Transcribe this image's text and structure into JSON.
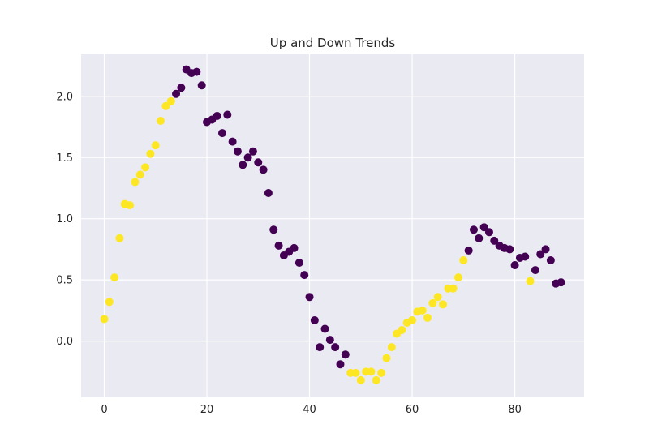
{
  "chart_data": {
    "type": "scatter",
    "title": "Up and Down Trends",
    "xlabel": "",
    "ylabel": "",
    "xlim": [
      -4.5,
      93.5
    ],
    "ylim": [
      -0.46,
      2.35
    ],
    "xticks": [
      0,
      20,
      40,
      60,
      80
    ],
    "yticks": [
      0.0,
      0.5,
      1.0,
      1.5,
      2.0
    ],
    "ytick_labels": [
      "0.0",
      "0.5",
      "1.0",
      "1.5",
      "2.0"
    ],
    "grid": true,
    "colors": {
      "up": "#fde725",
      "down": "#440154",
      "background": "#eaeaf2",
      "grid": "#ffffff"
    },
    "x": [
      0,
      1,
      2,
      3,
      4,
      5,
      6,
      7,
      8,
      9,
      10,
      11,
      12,
      13,
      14,
      15,
      16,
      17,
      18,
      19,
      20,
      21,
      22,
      23,
      24,
      25,
      26,
      27,
      28,
      29,
      30,
      31,
      32,
      33,
      34,
      35,
      36,
      37,
      38,
      39,
      40,
      41,
      42,
      43,
      44,
      45,
      46,
      47,
      48,
      49,
      50,
      51,
      52,
      53,
      54,
      55,
      56,
      57,
      58,
      59,
      60,
      61,
      62,
      63,
      64,
      65,
      66,
      67,
      68,
      69,
      70,
      71,
      72,
      73,
      74,
      75,
      76,
      77,
      78,
      79,
      80,
      81,
      82,
      83,
      84,
      85,
      86,
      87,
      88,
      89
    ],
    "y": [
      0.18,
      0.32,
      0.52,
      0.84,
      1.12,
      1.11,
      1.3,
      1.36,
      1.42,
      1.53,
      1.6,
      1.8,
      1.92,
      1.96,
      2.02,
      2.07,
      2.22,
      2.19,
      2.2,
      2.09,
      1.79,
      1.81,
      1.84,
      1.7,
      1.85,
      1.63,
      1.55,
      1.44,
      1.5,
      1.55,
      1.46,
      1.4,
      1.21,
      0.91,
      0.78,
      0.7,
      0.73,
      0.76,
      0.64,
      0.54,
      0.36,
      0.17,
      -0.05,
      0.1,
      0.01,
      -0.05,
      -0.19,
      -0.11,
      -0.26,
      -0.26,
      -0.32,
      -0.25,
      -0.25,
      -0.32,
      -0.26,
      -0.14,
      -0.05,
      0.06,
      0.09,
      0.15,
      0.17,
      0.24,
      0.25,
      0.19,
      0.31,
      0.36,
      0.3,
      0.43,
      0.43,
      0.52,
      0.66,
      0.74,
      0.91,
      0.84,
      0.93,
      0.89,
      0.82,
      0.78,
      0.76,
      0.75,
      0.62,
      0.68,
      0.69,
      0.49,
      0.58,
      0.71,
      0.75,
      0.66,
      0.47,
      0.48
    ],
    "trend": [
      "up",
      "up",
      "up",
      "up",
      "up",
      "up",
      "up",
      "up",
      "up",
      "up",
      "up",
      "up",
      "up",
      "up",
      "down",
      "down",
      "down",
      "down",
      "down",
      "down",
      "down",
      "down",
      "down",
      "down",
      "down",
      "down",
      "down",
      "down",
      "down",
      "down",
      "down",
      "down",
      "down",
      "down",
      "down",
      "down",
      "down",
      "down",
      "down",
      "down",
      "down",
      "down",
      "down",
      "down",
      "down",
      "down",
      "down",
      "down",
      "up",
      "up",
      "up",
      "up",
      "up",
      "up",
      "up",
      "up",
      "up",
      "up",
      "up",
      "up",
      "up",
      "up",
      "up",
      "up",
      "up",
      "up",
      "up",
      "up",
      "up",
      "up",
      "up",
      "down",
      "down",
      "down",
      "down",
      "down",
      "down",
      "down",
      "down",
      "down",
      "down",
      "down",
      "down",
      "up",
      "down",
      "down",
      "down",
      "down",
      "down",
      "down"
    ]
  }
}
